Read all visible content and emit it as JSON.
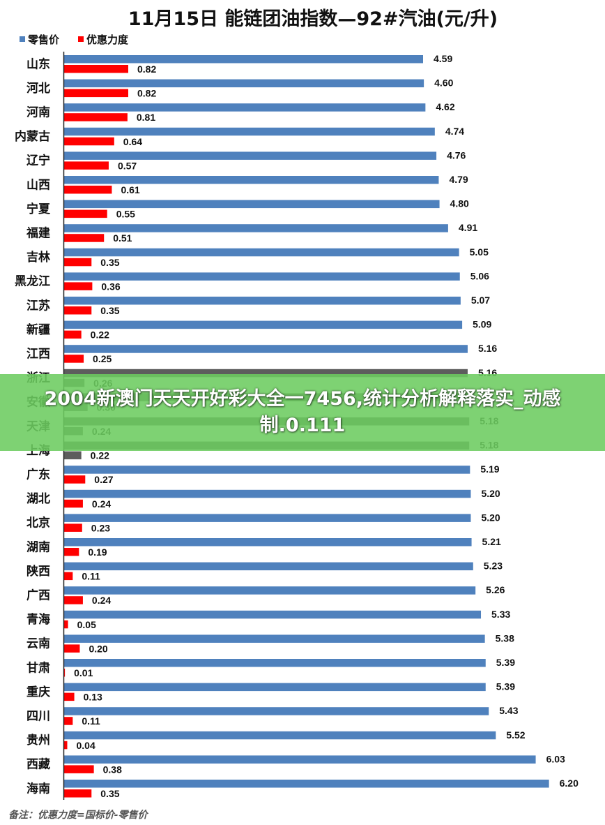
{
  "chart_data": {
    "type": "bar",
    "orientation": "horizontal",
    "title": "11月15日 能链团油指数—92#汽油(元/升)",
    "legend": {
      "placement": "top-left"
    },
    "categories": [
      "山东",
      "河北",
      "河南",
      "内蒙古",
      "辽宁",
      "山西",
      "宁夏",
      "福建",
      "吉林",
      "黑龙江",
      "江苏",
      "新疆",
      "江西",
      "浙江",
      "安徽",
      "天津",
      "上海",
      "广东",
      "湖北",
      "北京",
      "湖南",
      "陕西",
      "广西",
      "青海",
      "云南",
      "甘肃",
      "重庆",
      "四川",
      "贵州",
      "西藏",
      "海南"
    ],
    "series": [
      {
        "name": "零售价",
        "color": "#4f81bd",
        "values": [
          4.59,
          4.6,
          4.62,
          4.74,
          4.76,
          4.79,
          4.8,
          4.91,
          5.05,
          5.06,
          5.07,
          5.09,
          5.16,
          5.16,
          5.17,
          5.18,
          5.18,
          5.19,
          5.2,
          5.2,
          5.21,
          5.23,
          5.26,
          5.33,
          5.38,
          5.39,
          5.39,
          5.43,
          5.52,
          6.03,
          6.2
        ],
        "labels": [
          "4.59",
          "4.60",
          "4.62",
          "4.74",
          "4.76",
          "4.79",
          "4.80",
          "4.91",
          "5.05",
          "5.06",
          "5.07",
          "5.09",
          "5.16",
          "5.16",
          "",
          "5.18",
          "5.18",
          "5.19",
          "5.20",
          "5.20",
          "5.21",
          "5.23",
          "5.26",
          "5.33",
          "5.38",
          "5.39",
          "5.39",
          "5.43",
          "5.52",
          "6.03",
          "6.20"
        ]
      },
      {
        "name": "优惠力度",
        "color": "#ff0000",
        "values": [
          0.82,
          0.82,
          0.81,
          0.64,
          0.57,
          0.61,
          0.55,
          0.51,
          0.35,
          0.36,
          0.35,
          0.22,
          0.25,
          0.26,
          0.3,
          0.24,
          0.22,
          0.27,
          0.24,
          0.23,
          0.19,
          0.11,
          0.24,
          0.05,
          0.2,
          0.01,
          0.13,
          0.11,
          0.04,
          0.38,
          0.35
        ],
        "labels": [
          "0.82",
          "0.82",
          "0.81",
          "0.64",
          "0.57",
          "0.61",
          "0.55",
          "0.51",
          "0.35",
          "0.36",
          "0.35",
          "0.22",
          "0.25",
          "0.26",
          "0.30",
          "0.24",
          "0.22",
          "0.27",
          "0.24",
          "0.23",
          "0.19",
          "0.11",
          "0.24",
          "0.05",
          "0.20",
          "0.01",
          "0.13",
          "0.11",
          "0.04",
          "0.38",
          "0.35"
        ]
      }
    ],
    "xlim": [
      0,
      7.1
    ],
    "grid": false,
    "note": "备注：优惠力度=国标价-零售价"
  },
  "overlay": {
    "color": "#6ccc60",
    "text": "2004新澳门天天开好彩大全一7456,统计分析解释落实_动感制.0.111"
  }
}
